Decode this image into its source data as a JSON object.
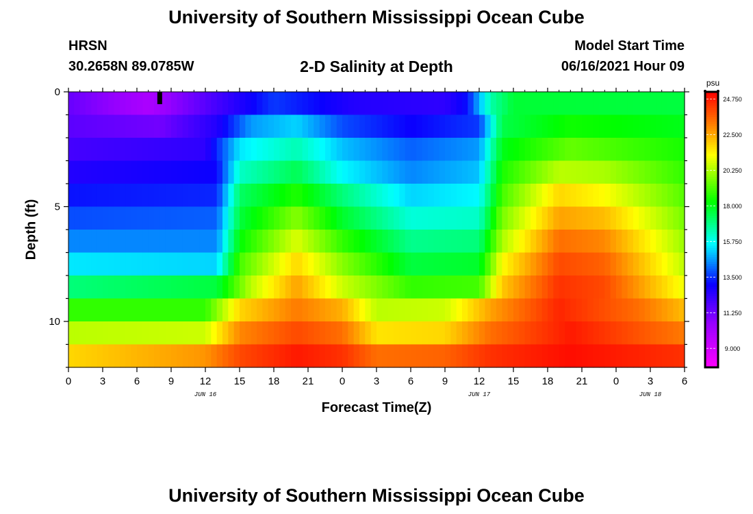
{
  "header": {
    "title": "University of Southern Mississippi Ocean Cube",
    "station": "HRSN",
    "coords": "30.2658N  89.0785W",
    "subtitle": "2-D Salinity at Depth",
    "model_start_label": "Model Start Time",
    "model_start_value": "06/16/2021 Hour 09"
  },
  "footer": {
    "title": "University of Southern Mississippi Ocean Cube"
  },
  "chart_data": {
    "type": "heatmap",
    "title": "2-D Salinity at Depth",
    "xlabel": "Forecast Time(Z)",
    "ylabel": "Depth (ft)",
    "x_range_hours": [
      0,
      54
    ],
    "y_range_ft": [
      0,
      12
    ],
    "x_ticks": [
      {
        "hour": 0,
        "label": "0"
      },
      {
        "hour": 3,
        "label": "3"
      },
      {
        "hour": 6,
        "label": "6"
      },
      {
        "hour": 9,
        "label": "9"
      },
      {
        "hour": 12,
        "label": "12"
      },
      {
        "hour": 15,
        "label": "15"
      },
      {
        "hour": 18,
        "label": "18"
      },
      {
        "hour": 21,
        "label": "21"
      },
      {
        "hour": 24,
        "label": "0"
      },
      {
        "hour": 27,
        "label": "3"
      },
      {
        "hour": 30,
        "label": "6"
      },
      {
        "hour": 33,
        "label": "9"
      },
      {
        "hour": 36,
        "label": "12"
      },
      {
        "hour": 39,
        "label": "15"
      },
      {
        "hour": 42,
        "label": "18"
      },
      {
        "hour": 45,
        "label": "21"
      },
      {
        "hour": 48,
        "label": "0"
      },
      {
        "hour": 51,
        "label": "3"
      },
      {
        "hour": 54,
        "label": "6"
      }
    ],
    "date_labels": [
      {
        "hour": 12,
        "label": "JUN 16"
      },
      {
        "hour": 36,
        "label": "JUN 17"
      },
      {
        "hour": 51,
        "label": "JUN 18"
      }
    ],
    "y_ticks": [
      {
        "depth": 0,
        "label": "0"
      },
      {
        "depth": 5,
        "label": "5"
      },
      {
        "depth": 10,
        "label": "10"
      }
    ],
    "model_start_marker_hour": 8,
    "colorbar": {
      "unit": "psu",
      "min": 7.8,
      "max": 25.2,
      "labels": [
        "24.750",
        "22.500",
        "20.250",
        "18.000",
        "15.750",
        "13.500",
        "11.250",
        "9.000"
      ]
    },
    "layers": [
      {
        "depth_top": 0,
        "depth_bottom": 1,
        "keypoints": [
          [
            0,
            11.4
          ],
          [
            7,
            10.0
          ],
          [
            13,
            12.0
          ],
          [
            18,
            13.6
          ],
          [
            21,
            13.2
          ],
          [
            25,
            12.6
          ],
          [
            33,
            12.4
          ],
          [
            35,
            13.2
          ],
          [
            37,
            16.5
          ],
          [
            39,
            17.7
          ],
          [
            54,
            17.6
          ]
        ]
      },
      {
        "depth_top": 1,
        "depth_bottom": 2,
        "keypoints": [
          [
            0,
            11.6
          ],
          [
            8,
            11.2
          ],
          [
            13,
            12.6
          ],
          [
            16,
            14.6
          ],
          [
            20,
            15.2
          ],
          [
            24,
            13.8
          ],
          [
            30,
            13.0
          ],
          [
            36,
            13.6
          ],
          [
            38,
            17.5
          ],
          [
            44,
            18.4
          ],
          [
            54,
            18.0
          ]
        ]
      },
      {
        "depth_top": 2,
        "depth_bottom": 3,
        "keypoints": [
          [
            0,
            12.0
          ],
          [
            12,
            12.4
          ],
          [
            15,
            15.4
          ],
          [
            20,
            16.4
          ],
          [
            24,
            15.0
          ],
          [
            30,
            14.0
          ],
          [
            36,
            14.6
          ],
          [
            38,
            18.0
          ],
          [
            44,
            19.4
          ],
          [
            54,
            18.5
          ]
        ]
      },
      {
        "depth_top": 3,
        "depth_bottom": 4,
        "keypoints": [
          [
            0,
            12.6
          ],
          [
            13,
            13.0
          ],
          [
            15,
            16.2
          ],
          [
            20,
            17.4
          ],
          [
            24,
            15.6
          ],
          [
            30,
            14.4
          ],
          [
            36,
            15.0
          ],
          [
            38,
            18.5
          ],
          [
            43,
            20.4
          ],
          [
            47,
            20.2
          ],
          [
            54,
            18.8
          ]
        ]
      },
      {
        "depth_top": 4,
        "depth_bottom": 5,
        "keypoints": [
          [
            0,
            13.2
          ],
          [
            13,
            13.4
          ],
          [
            15,
            17.2
          ],
          [
            20,
            18.6
          ],
          [
            24,
            17.0
          ],
          [
            30,
            15.2
          ],
          [
            36,
            15.6
          ],
          [
            38,
            19.0
          ],
          [
            43,
            21.8
          ],
          [
            47,
            21.2
          ],
          [
            54,
            19.2
          ]
        ]
      },
      {
        "depth_top": 5,
        "depth_bottom": 6,
        "keypoints": [
          [
            0,
            13.8
          ],
          [
            13,
            14.0
          ],
          [
            15,
            17.6
          ],
          [
            20,
            19.8
          ],
          [
            24,
            17.8
          ],
          [
            30,
            16.0
          ],
          [
            36,
            16.2
          ],
          [
            38,
            19.6
          ],
          [
            43,
            22.6
          ],
          [
            47,
            22.2
          ],
          [
            54,
            19.6
          ]
        ]
      },
      {
        "depth_top": 6,
        "depth_bottom": 7,
        "keypoints": [
          [
            0,
            14.4
          ],
          [
            13,
            14.4
          ],
          [
            15,
            18.2
          ],
          [
            20,
            20.8
          ],
          [
            24,
            18.8
          ],
          [
            30,
            16.8
          ],
          [
            36,
            17.0
          ],
          [
            38,
            20.2
          ],
          [
            43,
            23.4
          ],
          [
            47,
            23.0
          ],
          [
            54,
            20.0
          ]
        ]
      },
      {
        "depth_top": 7,
        "depth_bottom": 8,
        "keypoints": [
          [
            0,
            15.4
          ],
          [
            13,
            15.2
          ],
          [
            15,
            19.0
          ],
          [
            20,
            21.8
          ],
          [
            24,
            19.8
          ],
          [
            30,
            17.6
          ],
          [
            36,
            17.8
          ],
          [
            38,
            21.2
          ],
          [
            43,
            24.0
          ],
          [
            47,
            23.6
          ],
          [
            54,
            20.4
          ]
        ]
      },
      {
        "depth_top": 8,
        "depth_bottom": 9,
        "keypoints": [
          [
            0,
            17.0
          ],
          [
            13,
            17.6
          ],
          [
            16,
            20.4
          ],
          [
            20,
            22.6
          ],
          [
            24,
            20.6
          ],
          [
            30,
            18.8
          ],
          [
            36,
            19.0
          ],
          [
            38,
            22.0
          ],
          [
            43,
            24.4
          ],
          [
            47,
            24.0
          ],
          [
            54,
            21.0
          ]
        ]
      },
      {
        "depth_top": 9,
        "depth_bottom": 10,
        "keypoints": [
          [
            0,
            18.8
          ],
          [
            12,
            18.8
          ],
          [
            15,
            21.8
          ],
          [
            20,
            23.2
          ],
          [
            24,
            22.4
          ],
          [
            27,
            20.4
          ],
          [
            33,
            20.6
          ],
          [
            37,
            22.6
          ],
          [
            43,
            24.6
          ],
          [
            50,
            23.4
          ],
          [
            54,
            22.2
          ]
        ]
      },
      {
        "depth_top": 10,
        "depth_bottom": 11,
        "keypoints": [
          [
            0,
            20.4
          ],
          [
            12,
            20.6
          ],
          [
            15,
            23.0
          ],
          [
            20,
            24.0
          ],
          [
            24,
            23.4
          ],
          [
            27,
            21.6
          ],
          [
            33,
            21.8
          ],
          [
            37,
            23.4
          ],
          [
            44,
            24.8
          ],
          [
            54,
            23.2
          ]
        ]
      },
      {
        "depth_top": 11,
        "depth_bottom": 12,
        "keypoints": [
          [
            0,
            21.8
          ],
          [
            12,
            22.8
          ],
          [
            15,
            24.0
          ],
          [
            20,
            24.8
          ],
          [
            24,
            24.4
          ],
          [
            27,
            23.4
          ],
          [
            33,
            23.6
          ],
          [
            37,
            24.4
          ],
          [
            44,
            25.0
          ],
          [
            54,
            24.4
          ]
        ]
      }
    ]
  }
}
